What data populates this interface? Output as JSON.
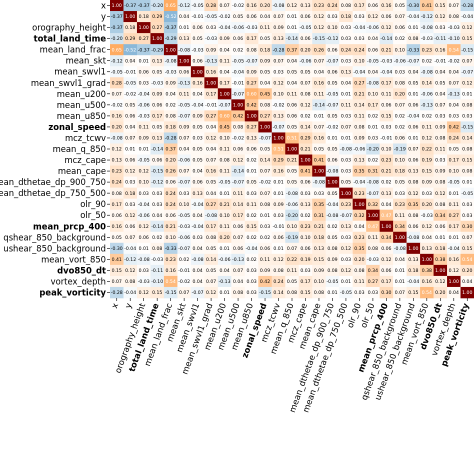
{
  "chart_data": {
    "type": "heatmap",
    "variables": [
      "x",
      "y",
      "orography_height",
      "total_land_time",
      "mean_land_frac",
      "mean_skt",
      "mean_swvl1",
      "mean_swvl1_grad",
      "mean_u200",
      "mean_u500",
      "mean_u850",
      "zonal_speed",
      "mcz_tcwv",
      "mean_q_850",
      "mcz_cape",
      "mean_cape",
      "mean_dthetae_dp_900_750",
      "mean_dthetae_dp_750_500",
      "olr_90",
      "olr_50",
      "mean_prcp_400",
      "qshear_850_background",
      "ushear_850_background",
      "mean_vort_850",
      "dvo850_dt",
      "vortex_depth",
      "peak_vorticity"
    ],
    "bold_variables": [
      "total_land_time",
      "zonal_speed",
      "mean_prcp_400",
      "dvo850_dt",
      "peak_vorticity"
    ],
    "matrix": [
      [
        1.0,
        -0.37,
        -0.37,
        -0.2,
        0.65,
        -0.12,
        -0.05,
        0.28,
        0.07,
        -0.02,
        0.16,
        0.2,
        -0.08,
        0.12,
        0.13,
        0.23,
        0.24,
        0.08,
        0.17,
        0.06,
        0.16,
        0.05,
        -0.3,
        0.41,
        0.15,
        0.07,
        -0.28
      ],
      [
        -0.37,
        1.0,
        0.18,
        0.29,
        -0.52,
        0.04,
        -0.01,
        -0.05,
        -0.02,
        0.05,
        0.06,
        0.04,
        0.07,
        0.01,
        0.06,
        0.12,
        0.03,
        0.18,
        0.03,
        0.12,
        0.06,
        0.07,
        -0.04,
        -0.12,
        0.12,
        0.08,
        -0.04
      ],
      [
        -0.37,
        0.18,
        1.0,
        0.27,
        -0.37,
        0.01,
        0.06,
        0.03,
        -0.04,
        -0.06,
        -0.03,
        0.11,
        0.09,
        0.01,
        -0.05,
        0.12,
        0.1,
        0.03,
        -0.04,
        -0.06,
        0.12,
        0.06,
        0.01,
        -0.08,
        0.03,
        -0.03,
        0.12
      ],
      [
        -0.2,
        0.29,
        0.27,
        1.0,
        -0.29,
        0.13,
        0.05,
        -0.03,
        0.09,
        0.06,
        0.17,
        0.05,
        0.13,
        -0.14,
        0.06,
        -0.15,
        -0.12,
        0.03,
        0.03,
        0.04,
        -0.14,
        0.02,
        0.08,
        -0.03,
        -0.11,
        -0.1,
        0.15
      ],
      [
        0.65,
        -0.52,
        -0.37,
        -0.29,
        1.0,
        -0.08,
        -0.03,
        0.09,
        0.04,
        0.02,
        0.08,
        0.18,
        -0.28,
        0.37,
        0.2,
        0.26,
        0.06,
        0.24,
        0.24,
        0.06,
        0.21,
        0.1,
        -0.33,
        0.23,
        0.16,
        0.54,
        -0.15
      ],
      [
        -0.12,
        0.04,
        0.01,
        0.13,
        -0.08,
        1.0,
        0.06,
        -0.13,
        0.11,
        -0.05,
        -0.07,
        0.09,
        0.07,
        0.04,
        -0.06,
        0.07,
        -0.07,
        0.03,
        0.1,
        -0.05,
        -0.03,
        -0.06,
        -0.07,
        0.02,
        -0.01,
        -0.02,
        0.07
      ],
      [
        -0.05,
        -0.01,
        0.06,
        0.05,
        -0.03,
        0.06,
        1.0,
        0.16,
        0.04,
        -0.04,
        0.09,
        0.05,
        0.03,
        0.05,
        0.05,
        0.04,
        0.06,
        0.13,
        -0.04,
        0.04,
        -0.04,
        0.03,
        0.04,
        -0.08,
        0.04,
        0.04,
        -0.07
      ],
      [
        0.28,
        -0.05,
        0.03,
        -0.03,
        0.09,
        -0.13,
        0.16,
        1.0,
        0.17,
        -0.01,
        0.27,
        0.04,
        0.12,
        0.04,
        0.07,
        0.16,
        0.05,
        0.04,
        0.27,
        -0.08,
        0.17,
        0.08,
        0.05,
        0.14,
        0.05,
        0.07,
        0.12
      ],
      [
        0.07,
        -0.02,
        -0.04,
        0.09,
        0.04,
        0.11,
        0.04,
        0.17,
        1.0,
        -0.07,
        0.6,
        0.45,
        0.1,
        0.11,
        0.08,
        0.11,
        -0.05,
        0.01,
        0.21,
        0.1,
        0.11,
        0.2,
        0.01,
        -0.06,
        0.04,
        -0.13,
        0.01
      ],
      [
        -0.02,
        0.05,
        -0.06,
        0.06,
        0.02,
        -0.05,
        -0.04,
        -0.01,
        -0.07,
        1.0,
        0.42,
        0.08,
        -0.02,
        0.06,
        0.12,
        -0.14,
        -0.07,
        0.11,
        0.14,
        0.17,
        0.06,
        0.07,
        0.06,
        -0.13,
        0.07,
        0.04,
        0.08
      ],
      [
        0.16,
        0.06,
        -0.03,
        0.17,
        0.08,
        -0.07,
        0.09,
        0.27,
        0.6,
        0.42,
        1.0,
        0.27,
        0.13,
        0.06,
        0.02,
        0.01,
        0.05,
        0.03,
        0.11,
        0.02,
        0.15,
        0.02,
        -0.04,
        0.02,
        0.03,
        0.03,
        0.03
      ],
      [
        0.2,
        0.04,
        0.11,
        0.05,
        0.18,
        0.09,
        0.05,
        0.04,
        0.45,
        0.08,
        0.27,
        1.0,
        -0.07,
        0.05,
        0.14,
        0.07,
        -0.02,
        0.07,
        0.08,
        0.01,
        0.03,
        0.02,
        0.06,
        0.11,
        0.09,
        0.42,
        -0.15
      ],
      [
        -0.08,
        0.07,
        0.09,
        0.13,
        -0.28,
        0.07,
        0.03,
        0.12,
        0.1,
        -0.02,
        0.13,
        -0.07,
        1.0,
        0.51,
        0.29,
        0.16,
        0.01,
        0.01,
        0.09,
        0.03,
        -0.01,
        0.06,
        0.01,
        0.12,
        0.08,
        0.24,
        0.14
      ],
      [
        0.12,
        0.01,
        0.01,
        -0.14,
        0.37,
        0.04,
        0.05,
        0.04,
        0.11,
        0.06,
        0.06,
        0.05,
        0.51,
        1.0,
        0.21,
        0.05,
        0.05,
        -0.08,
        -0.06,
        -0.2,
        0.1,
        -0.19,
        0.07,
        0.22,
        0.11,
        0.05,
        0.08
      ],
      [
        0.13,
        0.06,
        -0.05,
        0.06,
        0.2,
        -0.06,
        0.05,
        0.07,
        0.08,
        0.12,
        0.02,
        0.14,
        0.29,
        0.21,
        1.0,
        0.41,
        0.06,
        0.03,
        0.13,
        0.02,
        0.23,
        0.1,
        0.06,
        0.19,
        0.03,
        0.17,
        0.15
      ],
      [
        0.23,
        0.12,
        0.12,
        -0.15,
        0.26,
        0.07,
        0.04,
        0.16,
        0.11,
        -0.14,
        0.01,
        0.07,
        0.16,
        0.05,
        0.41,
        1.0,
        -0.08,
        0.03,
        0.35,
        0.31,
        0.21,
        0.18,
        0.13,
        0.15,
        0.09,
        0.1,
        0.08
      ],
      [
        0.24,
        0.03,
        0.1,
        -0.12,
        0.06,
        -0.07,
        0.06,
        0.05,
        -0.05,
        -0.07,
        0.05,
        -0.02,
        0.01,
        0.05,
        0.06,
        -0.08,
        1.0,
        0.05,
        -0.04,
        -0.08,
        0.02,
        0.05,
        0.08,
        0.09,
        0.08,
        -0.05,
        0.01
      ],
      [
        0.08,
        0.18,
        0.03,
        0.03,
        0.24,
        0.03,
        0.13,
        0.04,
        0.01,
        0.11,
        0.03,
        0.07,
        0.01,
        -0.08,
        0.03,
        0.03,
        0.05,
        1.0,
        0.23,
        -0.07,
        0.13,
        0.03,
        0.12,
        0.03,
        0.12,
        0.01,
        -0.05
      ],
      [
        0.17,
        0.03,
        -0.04,
        0.03,
        0.24,
        0.1,
        -0.04,
        0.27,
        0.21,
        0.14,
        0.11,
        0.08,
        0.09,
        -0.06,
        0.13,
        0.35,
        -0.04,
        0.23,
        1.0,
        0.32,
        0.04,
        0.23,
        0.35,
        0.2,
        0.08,
        0.11,
        0.03
      ],
      [
        0.06,
        0.12,
        -0.06,
        0.04,
        0.06,
        -0.05,
        0.04,
        -0.08,
        0.1,
        0.17,
        0.02,
        0.01,
        0.03,
        -0.2,
        0.02,
        0.31,
        -0.08,
        -0.07,
        0.32,
        1.0,
        0.47,
        0.11,
        0.08,
        -0.03,
        0.34,
        0.27,
        0.03
      ],
      [
        0.16,
        0.06,
        0.12,
        -0.14,
        0.21,
        -0.03,
        -0.04,
        0.17,
        0.11,
        0.06,
        0.15,
        0.03,
        -0.01,
        0.1,
        0.23,
        0.21,
        0.02,
        0.13,
        0.04,
        0.47,
        1.0,
        0.34,
        0.06,
        0.12,
        0.06,
        0.17,
        0.3
      ],
      [
        0.05,
        0.07,
        0.06,
        0.02,
        0.1,
        -0.06,
        0.03,
        0.08,
        0.2,
        0.07,
        0.02,
        0.02,
        0.06,
        -0.19,
        0.1,
        0.18,
        0.05,
        0.03,
        0.23,
        0.11,
        0.34,
        1.0,
        -0.08,
        0.04,
        0.01,
        0.01,
        0.07
      ],
      [
        -0.3,
        -0.04,
        0.01,
        0.08,
        -0.33,
        -0.07,
        0.04,
        0.05,
        0.01,
        0.06,
        -0.04,
        0.06,
        0.01,
        0.07,
        0.06,
        0.13,
        0.08,
        0.12,
        0.35,
        0.08,
        0.06,
        -0.08,
        1.0,
        0.13,
        0.18,
        -0.04,
        0.15
      ],
      [
        0.41,
        -0.12,
        -0.08,
        -0.03,
        0.23,
        0.02,
        -0.08,
        0.14,
        -0.06,
        -0.13,
        0.02,
        0.11,
        0.12,
        0.22,
        0.19,
        0.15,
        0.09,
        0.03,
        0.2,
        -0.03,
        0.12,
        0.04,
        0.13,
        1.0,
        0.38,
        0.16,
        0.54
      ],
      [
        0.15,
        0.12,
        0.03,
        -0.11,
        0.16,
        -0.01,
        0.04,
        0.05,
        0.04,
        0.07,
        0.03,
        0.09,
        0.08,
        0.11,
        0.03,
        0.09,
        0.08,
        0.12,
        0.08,
        0.34,
        0.06,
        0.01,
        0.18,
        0.38,
        1.0,
        0.12,
        0.2
      ],
      [
        0.07,
        0.08,
        -0.03,
        -0.1,
        0.54,
        -0.02,
        0.04,
        0.07,
        -0.13,
        0.04,
        0.03,
        0.42,
        0.24,
        0.05,
        0.17,
        0.1,
        -0.05,
        0.01,
        0.11,
        0.27,
        0.17,
        0.01,
        -0.04,
        0.16,
        0.12,
        1.0,
        0.04
      ],
      [
        -0.28,
        -0.04,
        0.12,
        0.15,
        -0.15,
        0.07,
        -0.07,
        0.12,
        0.01,
        0.08,
        0.03,
        -0.15,
        0.14,
        0.08,
        0.15,
        0.08,
        0.01,
        -0.05,
        0.03,
        0.03,
        0.3,
        0.07,
        0.15,
        0.54,
        0.2,
        0.04,
        1.0
      ]
    ],
    "value_range": [
      -1,
      1
    ],
    "colors": {
      "negative": "#1f77b4",
      "neutral": "#ffffff",
      "positive": "#ff7f0e",
      "diagonal": "#7f0000"
    }
  }
}
